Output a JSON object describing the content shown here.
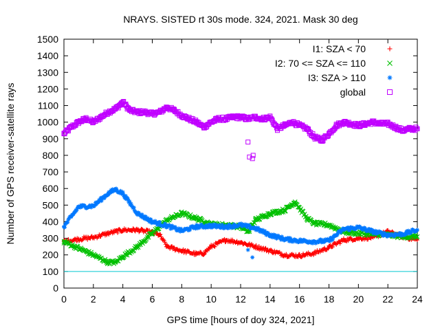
{
  "chart_data": {
    "type": "scatter",
    "title": "NRAYS. SISTED rt 30s mode. 324, 2021. Mask 30 deg",
    "xlabel": "GPS time [hours of doy 324, 2021]",
    "ylabel": "Number of GPS receiver-satellite rays",
    "xlim": [
      0,
      24
    ],
    "ylim": [
      0,
      1500
    ],
    "xticks": [
      0,
      2,
      4,
      6,
      8,
      10,
      12,
      14,
      16,
      18,
      20,
      22,
      24
    ],
    "yticks": [
      0,
      100,
      200,
      300,
      400,
      500,
      600,
      700,
      800,
      900,
      1000,
      1100,
      1200,
      1300,
      1400,
      1500
    ],
    "legend_position": "top-right",
    "reference_line": {
      "y": 100,
      "color": "#00c8d0"
    },
    "series": [
      {
        "name": "I1: SZA < 70",
        "marker": "+",
        "color": "#ff0000",
        "x": [
          0,
          1,
          2,
          3,
          4,
          5,
          6,
          6.5,
          7,
          8,
          9,
          9.5,
          10,
          11,
          12,
          13,
          14,
          15,
          16,
          17,
          18,
          19,
          20,
          21,
          22,
          23,
          24
        ],
        "y": [
          280,
          295,
          305,
          330,
          350,
          350,
          335,
          320,
          250,
          225,
          205,
          210,
          250,
          290,
          275,
          250,
          225,
          200,
          195,
          210,
          245,
          290,
          300,
          305,
          340,
          310,
          290
        ]
      },
      {
        "name": "I2: 70 <= SZA <= 110",
        "marker": "x",
        "color": "#00c000",
        "x": [
          0,
          1,
          2,
          3,
          3.5,
          4,
          5,
          6,
          7,
          8,
          9,
          10,
          11,
          12,
          12.5,
          13,
          14,
          15,
          15.7,
          16.5,
          17,
          18,
          19,
          20,
          21,
          22,
          23,
          24
        ],
        "y": [
          280,
          240,
          200,
          155,
          155,
          190,
          250,
          330,
          410,
          450,
          420,
          385,
          380,
          370,
          340,
          410,
          450,
          470,
          520,
          420,
          390,
          380,
          340,
          330,
          325,
          320,
          310,
          310
        ]
      },
      {
        "name": "I3: SZA > 110",
        "marker": "*",
        "color": "#0078ff",
        "x": [
          0,
          0.5,
          1,
          2,
          3,
          3.5,
          4,
          5,
          6,
          7,
          8,
          9,
          10,
          11,
          12,
          13,
          14,
          15,
          16,
          17,
          18,
          19,
          20,
          21,
          22,
          23,
          24
        ],
        "y": [
          370,
          430,
          490,
          495,
          570,
          595,
          570,
          450,
          400,
          375,
          345,
          370,
          375,
          370,
          380,
          360,
          320,
          295,
          285,
          280,
          285,
          355,
          365,
          340,
          320,
          325,
          350
        ]
      },
      {
        "name": "global",
        "marker": "square",
        "color": "#c000ff",
        "x": [
          0,
          0.5,
          1,
          1.5,
          2,
          2.5,
          3,
          3.5,
          4,
          4.5,
          5,
          5.5,
          6,
          6.5,
          7,
          7.5,
          8,
          8.5,
          9,
          9.5,
          10,
          10.5,
          11,
          11.5,
          12,
          12.5,
          13,
          13.5,
          14,
          14.5,
          15,
          15.5,
          16,
          16.5,
          17,
          17.5,
          18,
          18.5,
          19,
          19.5,
          20,
          20.5,
          21,
          21.5,
          22,
          22.5,
          23,
          23.5,
          24
        ],
        "y": [
          930,
          970,
          1000,
          1020,
          1000,
          1030,
          1060,
          1080,
          1120,
          1070,
          1060,
          1060,
          1050,
          1060,
          1090,
          1070,
          1040,
          1020,
          1000,
          970,
          1000,
          1020,
          1020,
          1030,
          1030,
          1020,
          1030,
          1020,
          1030,
          960,
          980,
          1000,
          980,
          960,
          910,
          890,
          930,
          980,
          1000,
          990,
          980,
          990,
          1000,
          990,
          990,
          970,
          950,
          960,
          960
        ]
      }
    ],
    "outliers": {
      "global": {
        "x": [
          12.5,
          12.6,
          12.8,
          12.85
        ],
        "y": [
          880,
          790,
          780,
          800
        ]
      },
      "I3: SZA > 110": {
        "x": [
          12.5,
          12.8
        ],
        "y": [
          230,
          185
        ]
      },
      "I2: 70 <= SZA <= 110": {
        "x": [
          12.6
        ],
        "y": [
          340
        ]
      }
    }
  }
}
